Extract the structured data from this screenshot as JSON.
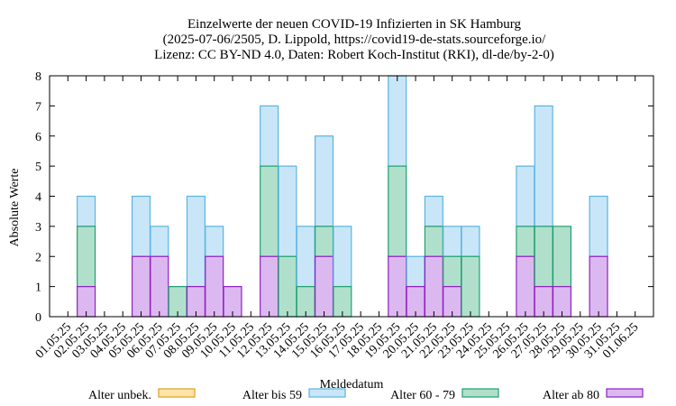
{
  "chart_data": {
    "type": "bar",
    "stacked": true,
    "title": [
      "Einzelwerte der neuen COVID-19 Infizierten in SK Hamburg",
      "(2025-07-06/2505, D. Lippold, https://covid19-de-stats.sourceforge.io/",
      "Lizenz: CC BY-ND 4.0, Daten: Robert Koch-Institut (RKI), dl-de/by-2-0)"
    ],
    "xlabel": "Meldedatum",
    "ylabel": "Absolute Werte",
    "ylim": [
      0,
      8
    ],
    "yticks": [
      0,
      1,
      2,
      3,
      4,
      5,
      6,
      7,
      8
    ],
    "categories": [
      "01.05.25",
      "02.05.25",
      "03.05.25",
      "04.05.25",
      "05.05.25",
      "06.05.25",
      "07.05.25",
      "08.05.25",
      "09.05.25",
      "10.05.25",
      "11.05.25",
      "12.05.25",
      "13.05.25",
      "14.05.25",
      "15.05.25",
      "16.05.25",
      "17.05.25",
      "18.05.25",
      "19.05.25",
      "20.05.25",
      "21.05.25",
      "22.05.25",
      "23.05.25",
      "24.05.25",
      "25.05.25",
      "26.05.25",
      "27.05.25",
      "28.05.25",
      "29.05.25",
      "30.05.25",
      "31.05.25",
      "01.06.25"
    ],
    "series": [
      {
        "name": "Alter unbek.",
        "fill": "#fde4a8",
        "stroke": "#e0a020",
        "values": [
          0,
          0,
          0,
          0,
          0,
          0,
          0,
          0,
          0,
          0,
          0,
          0,
          0,
          0,
          0,
          0,
          0,
          0,
          0,
          0,
          0,
          0,
          0,
          0,
          0,
          0,
          0,
          0,
          0,
          0,
          0,
          0
        ]
      },
      {
        "name": "Alter bis 59",
        "fill": "#c8e6f8",
        "stroke": "#5ab4e0",
        "values": [
          0,
          1,
          0,
          0,
          2,
          1,
          0,
          3,
          1,
          0,
          0,
          2,
          3,
          2,
          3,
          2,
          0,
          0,
          3,
          1,
          1,
          1,
          1,
          0,
          0,
          2,
          4,
          0,
          0,
          2,
          0,
          0
        ]
      },
      {
        "name": "Alter 60 - 79",
        "fill": "#b0e0cc",
        "stroke": "#20a070",
        "values": [
          0,
          2,
          0,
          0,
          0,
          0,
          1,
          0,
          0,
          0,
          0,
          3,
          2,
          1,
          1,
          1,
          0,
          0,
          3,
          0,
          1,
          1,
          2,
          0,
          0,
          1,
          2,
          2,
          0,
          0,
          0,
          0
        ]
      },
      {
        "name": "Alter ab 80",
        "fill": "#dcb8f0",
        "stroke": "#9020c0",
        "values": [
          0,
          1,
          0,
          0,
          2,
          2,
          0,
          1,
          2,
          1,
          0,
          2,
          0,
          0,
          2,
          0,
          0,
          0,
          2,
          1,
          2,
          1,
          0,
          0,
          0,
          2,
          1,
          1,
          0,
          2,
          0,
          0
        ]
      }
    ],
    "legend_placement": "bottom",
    "grid": false
  }
}
